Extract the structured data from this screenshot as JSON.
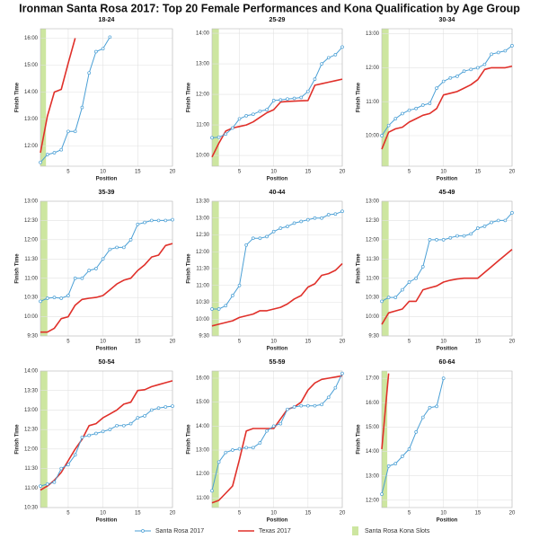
{
  "title": "Ironman Santa Rosa 2017: Top 20 Female Performances and Kona Qualification by Age Group",
  "legend": [
    {
      "name": "Santa Rosa 2017",
      "color": "#4a9fd5"
    },
    {
      "name": "Texas 2017",
      "color": "#e0302a"
    },
    {
      "name": "Santa Rosa Kona Slots",
      "color": "#cde6a0"
    }
  ],
  "chart_data": [
    {
      "type": "line",
      "title": "18-24",
      "xlabel": "Position",
      "ylabel": "Finish Time",
      "x": [
        1,
        2,
        3,
        4,
        5,
        6,
        7,
        8,
        9,
        10,
        11
      ],
      "xlim": [
        1,
        20
      ],
      "xticks": [
        5,
        10,
        15,
        20
      ],
      "kona_band": [
        1,
        1.8
      ],
      "ylim": [
        11.25,
        16.35
      ],
      "yticks": [
        {
          "value": 12,
          "label": "12:00"
        },
        {
          "value": 13,
          "label": "13:00"
        },
        {
          "value": 14,
          "label": "14:00"
        },
        {
          "value": 15,
          "label": "15:00"
        },
        {
          "value": 16,
          "label": "16:00"
        }
      ],
      "series": [
        {
          "values": [
            11.39,
            11.68,
            11.75,
            11.86,
            12.54,
            12.54,
            13.43,
            14.71,
            15.5,
            15.61,
            16.04
          ]
        },
        {
          "values": [
            11.75,
            13.1,
            14.0,
            14.1,
            15.07,
            16.0,
            null,
            null,
            null,
            null,
            null
          ]
        }
      ]
    },
    {
      "type": "line",
      "title": "25-29",
      "xlabel": "Position",
      "ylabel": "Finish Time",
      "x": [
        1,
        2,
        3,
        4,
        5,
        6,
        7,
        8,
        9,
        10,
        11,
        12,
        13,
        14,
        15,
        16,
        17,
        18,
        19,
        20
      ],
      "xlim": [
        1,
        20
      ],
      "xticks": [
        5,
        10,
        15,
        20
      ],
      "kona_band": [
        1,
        2
      ],
      "ylim": [
        9.65,
        14.15
      ],
      "yticks": [
        {
          "value": 10,
          "label": "10:00"
        },
        {
          "value": 11,
          "label": "11:00"
        },
        {
          "value": 12,
          "label": "12:00"
        },
        {
          "value": 13,
          "label": "13:00"
        },
        {
          "value": 14,
          "label": "14:00"
        }
      ],
      "series": [
        {
          "values": [
            10.58,
            10.6,
            10.7,
            10.9,
            11.2,
            11.3,
            11.35,
            11.45,
            11.5,
            11.8,
            11.82,
            11.85,
            11.87,
            11.9,
            12.1,
            12.5,
            13.0,
            13.2,
            13.3,
            13.55
          ]
        },
        {
          "values": [
            9.95,
            10.4,
            10.8,
            10.9,
            10.95,
            11.0,
            11.1,
            11.25,
            11.4,
            11.5,
            11.75,
            11.77,
            11.78,
            11.79,
            11.8,
            12.3,
            12.35,
            12.4,
            12.45,
            12.5
          ]
        }
      ]
    },
    {
      "type": "line",
      "title": "30-34",
      "xlabel": "Position",
      "ylabel": "Finish Time",
      "x": [
        1,
        2,
        3,
        4,
        5,
        6,
        7,
        8,
        9,
        10,
        11,
        12,
        13,
        14,
        15,
        16,
        17,
        18,
        19,
        20
      ],
      "xlim": [
        1,
        20
      ],
      "xticks": [
        5,
        10,
        15,
        20
      ],
      "kona_band": [
        1,
        2
      ],
      "ylim": [
        9.1,
        13.15
      ],
      "yticks": [
        {
          "value": 10,
          "label": "10:00"
        },
        {
          "value": 11,
          "label": "11:00"
        },
        {
          "value": 12,
          "label": "12:00"
        },
        {
          "value": 13,
          "label": "13:00"
        }
      ],
      "series": [
        {
          "values": [
            10.0,
            10.3,
            10.5,
            10.65,
            10.75,
            10.8,
            10.9,
            10.95,
            11.4,
            11.6,
            11.7,
            11.75,
            11.9,
            11.95,
            12.0,
            12.1,
            12.4,
            12.45,
            12.5,
            12.65
          ]
        },
        {
          "values": [
            9.6,
            10.1,
            10.2,
            10.25,
            10.4,
            10.5,
            10.6,
            10.65,
            10.8,
            11.2,
            11.25,
            11.3,
            11.4,
            11.5,
            11.65,
            11.95,
            12.0,
            12.0,
            12.0,
            12.05
          ]
        }
      ]
    },
    {
      "type": "line",
      "title": "35-39",
      "xlabel": "Position",
      "ylabel": "Finish Time",
      "x": [
        1,
        2,
        3,
        4,
        5,
        6,
        7,
        8,
        9,
        10,
        11,
        12,
        13,
        14,
        15,
        16,
        17,
        18,
        19,
        20
      ],
      "xlim": [
        1,
        20
      ],
      "xticks": [
        5,
        10,
        15,
        20
      ],
      "kona_band": [
        1,
        2
      ],
      "ylim": [
        9.5,
        13
      ],
      "yticks": [
        {
          "value": 9.5,
          "label": "9:30"
        },
        {
          "value": 10,
          "label": "10:00"
        },
        {
          "value": 10.5,
          "label": "10:30"
        },
        {
          "value": 11,
          "label": "11:00"
        },
        {
          "value": 11.5,
          "label": "11:30"
        },
        {
          "value": 12,
          "label": "12:00"
        },
        {
          "value": 12.5,
          "label": "12:30"
        },
        {
          "value": 13,
          "label": "13:00"
        }
      ],
      "series": [
        {
          "values": [
            10.4,
            10.48,
            10.5,
            10.48,
            10.55,
            11.0,
            11.0,
            11.2,
            11.25,
            11.5,
            11.75,
            11.8,
            11.8,
            12.0,
            12.4,
            12.45,
            12.5,
            12.5,
            12.5,
            12.52
          ]
        },
        {
          "values": [
            9.6,
            9.6,
            9.7,
            9.95,
            10.0,
            10.3,
            10.45,
            10.48,
            10.5,
            10.55,
            10.7,
            10.85,
            10.95,
            11.0,
            11.2,
            11.35,
            11.55,
            11.6,
            11.85,
            11.9
          ]
        }
      ]
    },
    {
      "type": "line",
      "title": "40-44",
      "xlabel": "Position",
      "ylabel": "Finish Time",
      "x": [
        1,
        2,
        3,
        4,
        5,
        6,
        7,
        8,
        9,
        10,
        11,
        12,
        13,
        14,
        15,
        16,
        17,
        18,
        19,
        20
      ],
      "xlim": [
        1,
        20
      ],
      "xticks": [
        5,
        10,
        15,
        20
      ],
      "kona_band": [
        1,
        2
      ],
      "ylim": [
        9.5,
        13.5
      ],
      "yticks": [
        {
          "value": 9.5,
          "label": "9:30"
        },
        {
          "value": 10,
          "label": "10:00"
        },
        {
          "value": 10.5,
          "label": "10:30"
        },
        {
          "value": 11,
          "label": "11:00"
        },
        {
          "value": 11.5,
          "label": "11:30"
        },
        {
          "value": 12,
          "label": "12:00"
        },
        {
          "value": 12.5,
          "label": "12:30"
        },
        {
          "value": 13,
          "label": "13:00"
        },
        {
          "value": 13.5,
          "label": "13:30"
        }
      ],
      "series": [
        {
          "values": [
            10.3,
            10.3,
            10.4,
            10.7,
            11.0,
            12.2,
            12.4,
            12.4,
            12.45,
            12.6,
            12.7,
            12.75,
            12.85,
            12.9,
            12.95,
            13.0,
            13.0,
            13.1,
            13.12,
            13.2
          ]
        },
        {
          "values": [
            9.8,
            9.85,
            9.9,
            9.95,
            10.05,
            10.1,
            10.15,
            10.25,
            10.25,
            10.3,
            10.35,
            10.45,
            10.6,
            10.7,
            10.95,
            11.05,
            11.3,
            11.35,
            11.45,
            11.65
          ]
        }
      ]
    },
    {
      "type": "line",
      "title": "45-49",
      "xlabel": "Position",
      "ylabel": "Finish Time",
      "x": [
        1,
        2,
        3,
        4,
        5,
        6,
        7,
        8,
        9,
        10,
        11,
        12,
        13,
        14,
        15,
        16,
        17,
        18,
        19,
        20
      ],
      "xlim": [
        1,
        20
      ],
      "xticks": [
        5,
        10,
        15,
        20
      ],
      "kona_band": [
        1,
        2
      ],
      "ylim": [
        9.5,
        13
      ],
      "yticks": [
        {
          "value": 9.5,
          "label": "9:30"
        },
        {
          "value": 10,
          "label": "10:00"
        },
        {
          "value": 10.5,
          "label": "10:30"
        },
        {
          "value": 11,
          "label": "11:00"
        },
        {
          "value": 11.5,
          "label": "11:30"
        },
        {
          "value": 12,
          "label": "12:00"
        },
        {
          "value": 12.5,
          "label": "12:30"
        },
        {
          "value": 13,
          "label": "13:00"
        }
      ],
      "series": [
        {
          "values": [
            10.4,
            10.5,
            10.5,
            10.7,
            10.9,
            11.0,
            11.3,
            12.0,
            12.0,
            12.0,
            12.05,
            12.1,
            12.1,
            12.15,
            12.3,
            12.35,
            12.45,
            12.5,
            12.5,
            12.7
          ]
        },
        {
          "values": [
            9.8,
            10.1,
            10.15,
            10.2,
            10.4,
            10.4,
            10.7,
            10.75,
            10.8,
            10.9,
            10.95,
            10.98,
            11.0,
            11.0,
            11.0,
            11.15,
            11.3,
            11.45,
            11.6,
            11.75
          ]
        }
      ]
    },
    {
      "type": "line",
      "title": "50-54",
      "xlabel": "Position",
      "ylabel": "Finish Time",
      "x": [
        1,
        2,
        3,
        4,
        5,
        6,
        7,
        8,
        9,
        10,
        11,
        12,
        13,
        14,
        15,
        16,
        17,
        18,
        19,
        20
      ],
      "xlim": [
        1,
        20
      ],
      "xticks": [
        5,
        10,
        15,
        20
      ],
      "kona_band": [
        1,
        2
      ],
      "ylim": [
        10.5,
        14
      ],
      "yticks": [
        {
          "value": 10.5,
          "label": "10:30"
        },
        {
          "value": 11,
          "label": "11:00"
        },
        {
          "value": 11.5,
          "label": "11:30"
        },
        {
          "value": 12,
          "label": "12:00"
        },
        {
          "value": 12.5,
          "label": "12:30"
        },
        {
          "value": 13,
          "label": "13:00"
        },
        {
          "value": 13.5,
          "label": "13:30"
        },
        {
          "value": 14,
          "label": "14:00"
        }
      ],
      "series": [
        {
          "values": [
            11.05,
            11.1,
            11.15,
            11.5,
            11.6,
            11.85,
            12.3,
            12.35,
            12.4,
            12.45,
            12.5,
            12.6,
            12.6,
            12.65,
            12.8,
            12.85,
            13.0,
            13.05,
            13.08,
            13.1
          ]
        },
        {
          "values": [
            10.95,
            11.05,
            11.2,
            11.4,
            11.7,
            12.0,
            12.25,
            12.6,
            12.65,
            12.8,
            12.9,
            13.0,
            13.15,
            13.2,
            13.5,
            13.52,
            13.6,
            13.65,
            13.7,
            13.75
          ]
        }
      ]
    },
    {
      "type": "line",
      "title": "55-59",
      "xlabel": "Position",
      "ylabel": "Finish Time",
      "x": [
        1,
        2,
        3,
        4,
        5,
        6,
        7,
        8,
        9,
        10,
        11,
        12,
        13,
        14,
        15,
        16,
        17,
        18,
        19,
        20
      ],
      "xlim": [
        1,
        20
      ],
      "xticks": [
        5,
        10,
        15,
        20
      ],
      "kona_band": [
        1,
        2
      ],
      "ylim": [
        10.6,
        16.3
      ],
      "yticks": [
        {
          "value": 11,
          "label": "11:00"
        },
        {
          "value": 12,
          "label": "12:00"
        },
        {
          "value": 13,
          "label": "13:00"
        },
        {
          "value": 14,
          "label": "14:00"
        },
        {
          "value": 15,
          "label": "15:00"
        },
        {
          "value": 16,
          "label": "16:00"
        }
      ],
      "series": [
        {
          "values": [
            11.3,
            12.5,
            12.9,
            13.0,
            13.05,
            13.1,
            13.1,
            13.3,
            13.8,
            14.0,
            14.1,
            14.7,
            14.8,
            14.85,
            14.85,
            14.85,
            14.9,
            15.2,
            15.6,
            16.2
          ]
        },
        {
          "values": [
            10.8,
            10.9,
            11.2,
            11.5,
            12.6,
            13.8,
            13.9,
            13.9,
            13.9,
            13.9,
            14.3,
            14.7,
            14.8,
            15.0,
            15.5,
            15.8,
            15.95,
            16.0,
            16.05,
            16.1
          ]
        }
      ]
    },
    {
      "type": "line",
      "title": "60-64",
      "xlabel": "Position",
      "ylabel": "Finish Time",
      "x": [
        1,
        2,
        3,
        4,
        5,
        6,
        7,
        8,
        9,
        10
      ],
      "xlim": [
        1,
        20
      ],
      "xticks": [
        5,
        10,
        15,
        20
      ],
      "kona_band": [
        1,
        1.8
      ],
      "ylim": [
        11.7,
        17.3
      ],
      "yticks": [
        {
          "value": 12,
          "label": "12:00"
        },
        {
          "value": 13,
          "label": "13:00"
        },
        {
          "value": 14,
          "label": "14:00"
        },
        {
          "value": 15,
          "label": "15:00"
        },
        {
          "value": 16,
          "label": "16:00"
        },
        {
          "value": 17,
          "label": "17:00"
        }
      ],
      "series": [
        {
          "values": [
            12.25,
            13.4,
            13.5,
            13.8,
            14.1,
            14.8,
            15.4,
            15.8,
            15.85,
            17.0
          ]
        },
        {
          "values": [
            14.1,
            17.2,
            null,
            null,
            null,
            null,
            null,
            null,
            null,
            null
          ]
        }
      ]
    }
  ]
}
